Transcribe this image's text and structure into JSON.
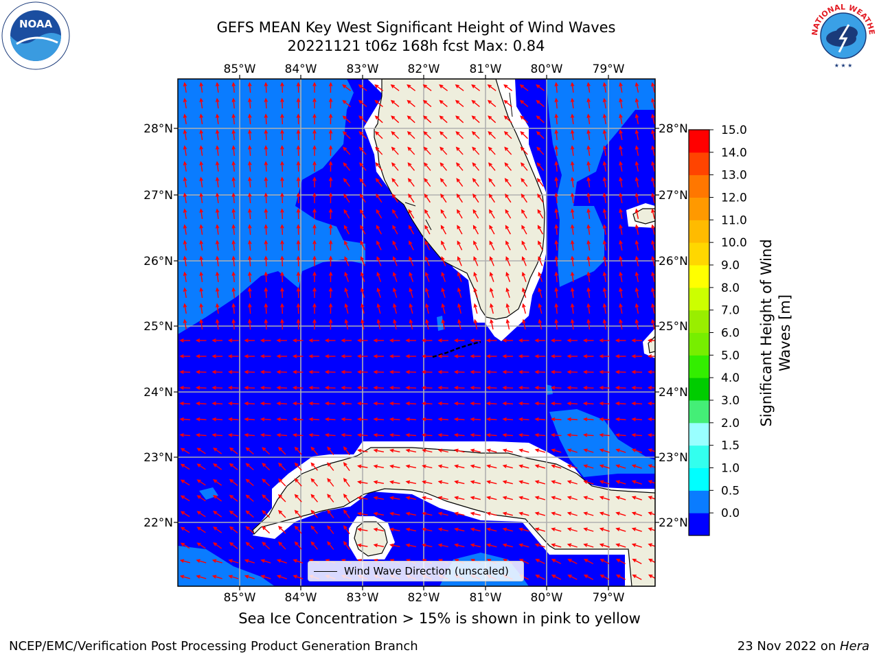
{
  "title": {
    "line1": "GEFS MEAN Key West Significant Height of Wind Waves",
    "line2": "20221121 t06z 168h fcst   Max: 0.84"
  },
  "logos": {
    "left": {
      "name": "noaa-logo",
      "text": "NOAA"
    },
    "right": {
      "name": "nws-logo",
      "text": "NATIONAL WEATHER SERVICE"
    }
  },
  "map": {
    "lon_range": [
      -86.0,
      -78.25
    ],
    "lat_range": [
      21.05,
      28.75
    ],
    "lon_ticks": [
      "85°W",
      "84°W",
      "83°W",
      "82°W",
      "81°W",
      "80°W",
      "79°W"
    ],
    "lat_ticks": [
      "28°N",
      "27°N",
      "26°N",
      "25°N",
      "24°N",
      "23°N",
      "22°N"
    ],
    "grid": true,
    "colors": {
      "land": "#eeeedd",
      "band_0_0_5": "#0000ff",
      "band_0_5_1_0": "#0a7cff",
      "gridline": "#b0b0b0",
      "arrow": "#ff0000"
    }
  },
  "legend": {
    "label": "Wind Wave Direction (unscaled)"
  },
  "colorbar": {
    "label": "Significant Height of Wind Waves [m]",
    "label_lines": [
      "Significant Height of Wind",
      "Waves [m]"
    ],
    "ticks": [
      "15.0",
      "14.0",
      "13.0",
      "12.0",
      "11.0",
      "10.0",
      "9.0",
      "8.0",
      "7.0",
      "6.0",
      "5.0",
      "4.0",
      "3.0",
      "2.0",
      "1.5",
      "1.0",
      "0.5",
      "0.0"
    ],
    "colors": [
      "#0000ff",
      "#0a7cff",
      "#00ffff",
      "#33ffee",
      "#99ffff",
      "#44ee77",
      "#00cc00",
      "#33ee00",
      "#77ee00",
      "#99ee00",
      "#ccff00",
      "#ffff00",
      "#ffd700",
      "#ffbb00",
      "#ff9900",
      "#ff7700",
      "#ff4400",
      "#ff0000"
    ]
  },
  "note": "Sea Ice Concentration > 15% is shown in pink to yellow",
  "footer": {
    "left": "NCEP/EMC/Verification Post Processing Product Generation Branch",
    "right_date": "23 Nov 2022 on ",
    "right_host": "Hera"
  }
}
